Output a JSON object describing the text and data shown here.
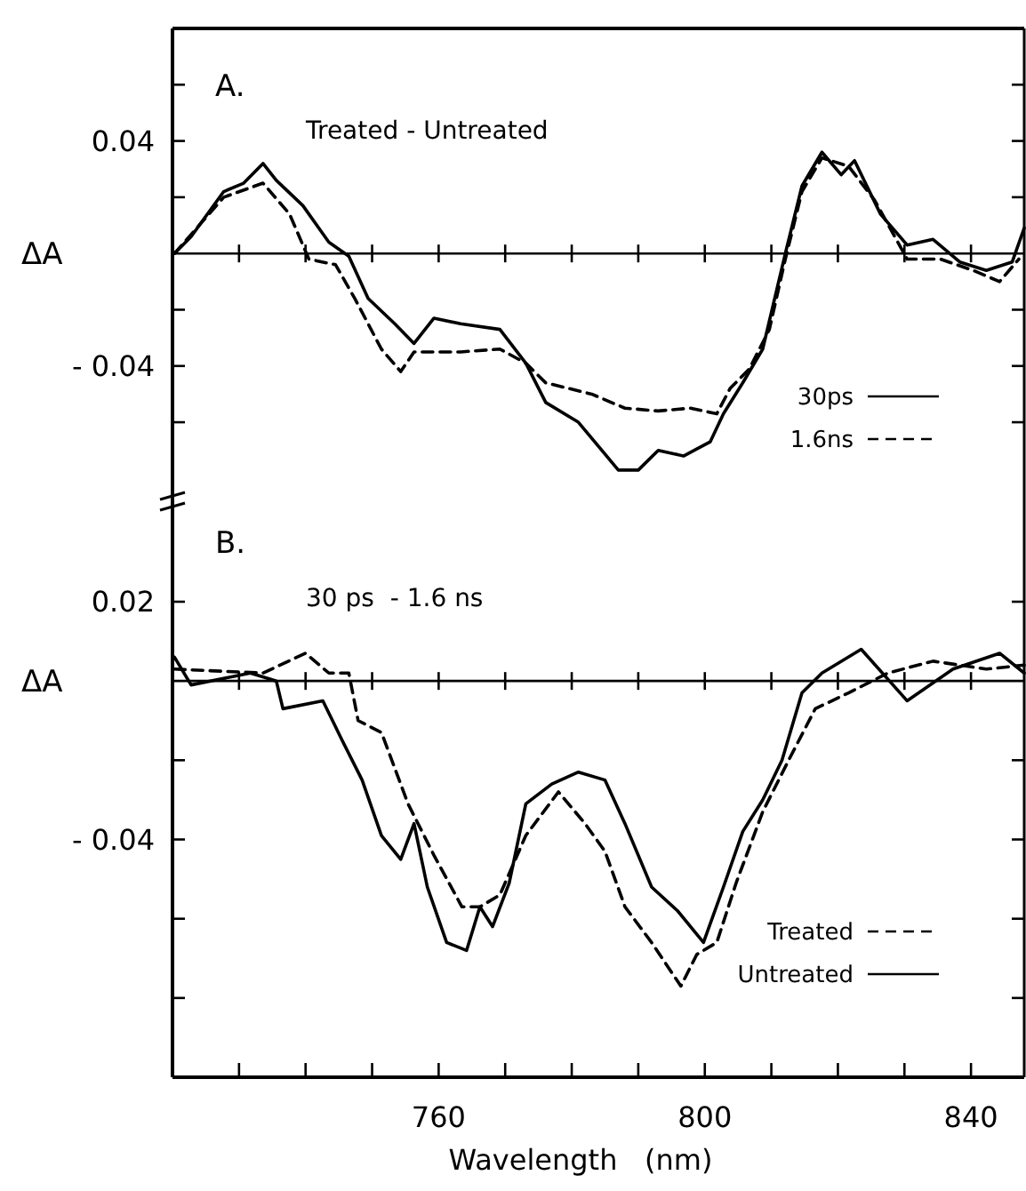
{
  "chart_data": [
    {
      "type": "line",
      "title": "A.",
      "subtitle": "Treated - Untreated",
      "ylabel": "ΔA",
      "xlim": [
        720,
        848
      ],
      "ylim": [
        -0.09,
        0.08
      ],
      "xticks": [
        {
          "value": 730,
          "label": null
        },
        {
          "value": 740,
          "label": null
        },
        {
          "value": 750,
          "label": null
        },
        {
          "value": 760,
          "label": null
        },
        {
          "value": 770,
          "label": null
        },
        {
          "value": 780,
          "label": null
        },
        {
          "value": 790,
          "label": null
        },
        {
          "value": 800,
          "label": null
        },
        {
          "value": 810,
          "label": null
        },
        {
          "value": 820,
          "label": null
        },
        {
          "value": 830,
          "label": null
        },
        {
          "value": 840,
          "label": null
        }
      ],
      "yticks": [
        {
          "value": 0.06,
          "label": null
        },
        0.04,
        {
          "value": 0.02,
          "label": null
        },
        {
          "value": -0.02,
          "label": null
        },
        -0.04,
        {
          "value": -0.06,
          "label": null
        }
      ],
      "tick_labels": "y",
      "legend": "bottom right",
      "ref_lines": [
        {
          "axis": "y",
          "value": 0
        }
      ],
      "series": [
        {
          "name": "30ps",
          "color": "#000000",
          "line_style": "solid",
          "x": [
            720.3,
            722.8,
            727.7,
            730.7,
            733.6,
            735.6,
            739.6,
            743.5,
            746.5,
            749.4,
            753.4,
            756.3,
            759.3,
            763.3,
            769.2,
            773.1,
            776.1,
            781,
            787,
            790,
            793,
            796.8,
            800.8,
            802.8,
            805.7,
            808.7,
            812.1,
            814.6,
            817.6,
            820.5,
            822.5,
            826.4,
            830.4,
            834.3,
            838.3,
            842.3,
            846.2,
            848
          ],
          "values": [
            0,
            0.006,
            0.022,
            0.025,
            0.032,
            0.026,
            0.017,
            0.004,
            -0.001,
            -0.016,
            -0.025,
            -0.032,
            -0.023,
            -0.025,
            -0.027,
            -0.039,
            -0.053,
            -0.06,
            -0.077,
            -0.077,
            -0.07,
            -0.072,
            -0.067,
            -0.057,
            -0.046,
            -0.034,
            0,
            0.024,
            0.036,
            0.028,
            0.033,
            0.014,
            0.003,
            0.005,
            -0.003,
            -0.006,
            -0.003,
            0.009
          ]
        },
        {
          "name": "1.6ns",
          "color": "#000000",
          "line_style": "dashed",
          "x": [
            720.3,
            727.7,
            733.6,
            737.6,
            740.5,
            744.5,
            747.4,
            751.4,
            754.3,
            756.3,
            763.3,
            769.2,
            773.1,
            776.1,
            783,
            788,
            793,
            797.8,
            801.8,
            803.8,
            806.7,
            809.7,
            812.1,
            814.6,
            817.6,
            821.6,
            825.5,
            830.4,
            835.4,
            840.3,
            844.3,
            847.2
          ],
          "values": [
            0,
            0.02,
            0.025,
            0.014,
            -0.002,
            -0.004,
            -0.016,
            -0.034,
            -0.042,
            -0.035,
            -0.035,
            -0.034,
            -0.039,
            -0.046,
            -0.05,
            -0.055,
            -0.056,
            -0.055,
            -0.057,
            -0.048,
            -0.041,
            -0.027,
            -0.002,
            0.022,
            0.034,
            0.031,
            0.019,
            -0.002,
            -0.002,
            -0.006,
            -0.01,
            -0.002
          ]
        }
      ]
    },
    {
      "type": "line",
      "title": "B.",
      "subtitle": "30 ps  - 1.6 ns",
      "xlabel": "Wavelength   (nm)",
      "ylabel": "ΔA",
      "xlim": [
        720,
        848
      ],
      "ylim": [
        -0.1,
        0.044
      ],
      "xticks": [
        {
          "value": 730,
          "label": null
        },
        {
          "value": 740,
          "label": null
        },
        {
          "value": 750,
          "label": null
        },
        760,
        {
          "value": 770,
          "label": null
        },
        {
          "value": 780,
          "label": null
        },
        {
          "value": 790,
          "label": null
        },
        800,
        {
          "value": 810,
          "label": null
        },
        {
          "value": 820,
          "label": null
        },
        {
          "value": 830,
          "label": null
        },
        840
      ],
      "yticks": [
        0.02,
        {
          "value": -0.02,
          "label": null
        },
        -0.04,
        {
          "value": -0.06,
          "label": null
        },
        {
          "value": -0.08,
          "label": null
        }
      ],
      "legend": "bottom right",
      "ref_lines": [
        {
          "axis": "y",
          "value": 0
        }
      ],
      "series": [
        {
          "name": "Treated",
          "color": "#000000",
          "line_style": "dashed",
          "x": [
            720.3,
            733.6,
            740,
            743.5,
            746.5,
            747.9,
            751.4,
            755.4,
            759.3,
            763.5,
            766.2,
            769.2,
            773.1,
            778,
            782,
            785,
            788,
            792,
            796.4,
            798.8,
            801.8,
            804.7,
            808.7,
            812.6,
            816.6,
            821.6,
            827.5,
            834.3,
            842.3,
            848
          ],
          "values": [
            0.003,
            0.002,
            0.007,
            0.002,
            0.002,
            -0.01,
            -0.013,
            -0.031,
            -0.044,
            -0.057,
            -0.057,
            -0.054,
            -0.039,
            -0.028,
            -0.036,
            -0.043,
            -0.057,
            -0.066,
            -0.077,
            -0.069,
            -0.066,
            -0.051,
            -0.033,
            -0.02,
            -0.007,
            -0.003,
            0.002,
            0.005,
            0.003,
            0.004
          ]
        },
        {
          "name": "Untreated",
          "color": "#000000",
          "line_style": "solid",
          "x": [
            720.3,
            722.8,
            731.7,
            735.6,
            736.6,
            742.6,
            745.5,
            748.5,
            751.4,
            754.3,
            756.3,
            758.3,
            761.2,
            764.2,
            766.2,
            768.1,
            770.6,
            773.1,
            777,
            781,
            785,
            788,
            792,
            795.9,
            799.8,
            802.8,
            805.7,
            808.7,
            811.6,
            814.6,
            817.6,
            823.5,
            830.4,
            837.3,
            844.3,
            848
          ],
          "values": [
            0.006,
            -0.001,
            0.002,
            0,
            -0.007,
            -0.005,
            -0.015,
            -0.025,
            -0.039,
            -0.045,
            -0.036,
            -0.052,
            -0.066,
            -0.068,
            -0.057,
            -0.062,
            -0.051,
            -0.031,
            -0.026,
            -0.023,
            -0.025,
            -0.036,
            -0.052,
            -0.058,
            -0.066,
            -0.052,
            -0.038,
            -0.03,
            -0.02,
            -0.003,
            0.002,
            0.008,
            -0.005,
            0.003,
            0.007,
            0.002
          ]
        }
      ]
    }
  ]
}
